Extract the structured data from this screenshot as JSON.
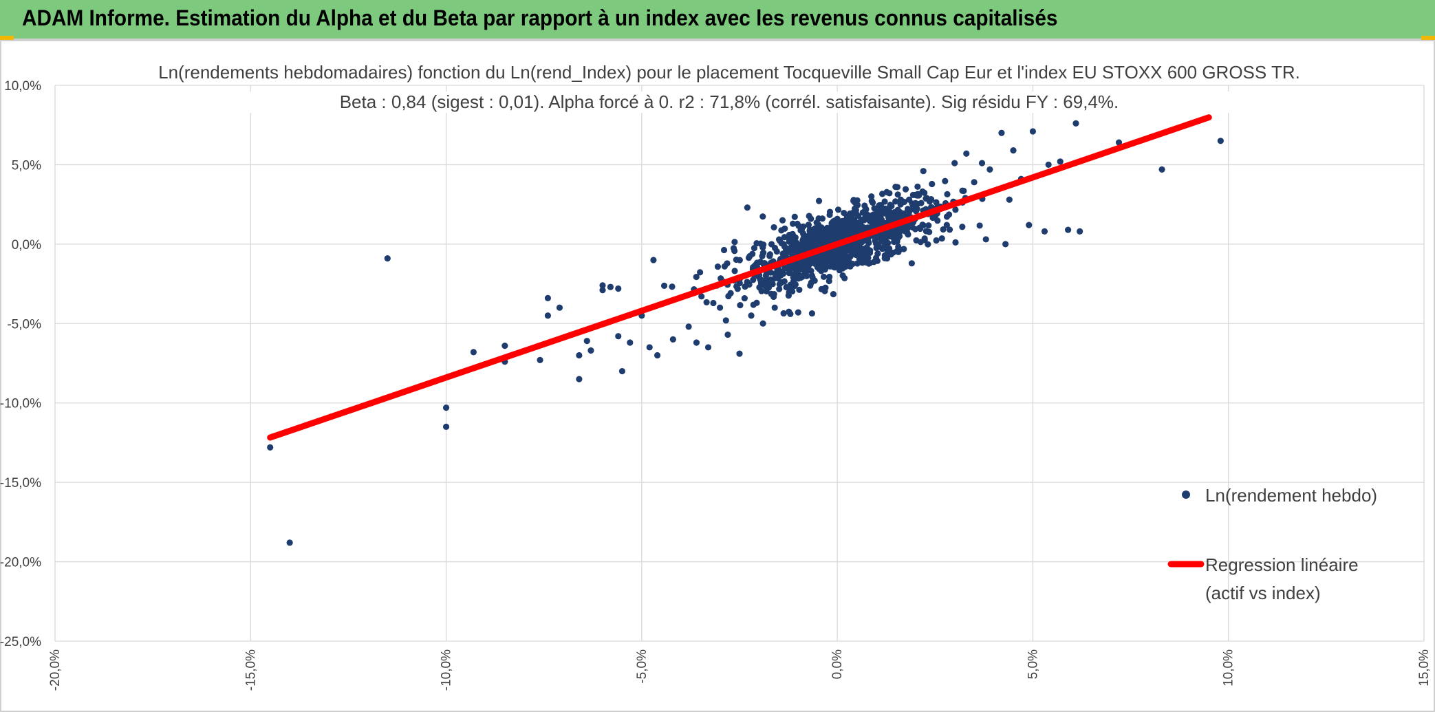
{
  "banner": {
    "title": "ADAM Informe. Estimation du Alpha et du Beta par rapport à un index avec les revenus connus capitalisés"
  },
  "colors": {
    "banner": "#7dc97d",
    "points": "#1f3c6e",
    "regression": "#ff0000",
    "grid": "#d9d9d9",
    "text": "#404040"
  },
  "chart_data": {
    "type": "scatter",
    "title": "Ln(rendements hebdomadaires) fonction du Ln(rend_Index) pour le placement Tocqueville Small Cap Eur et l'index EU STOXX 600 GROSS TR.",
    "subtitle": "Beta : 0,84 (sigest : 0,01). Alpha forcé à 0. r2 : 71,8% (corrél. satisfaisante). Sig résidu FY : 69,4%.",
    "xlim": [
      -0.2,
      0.15
    ],
    "ylim": [
      -0.25,
      0.1
    ],
    "x_ticks": [
      -0.2,
      -0.15,
      -0.1,
      -0.05,
      0.0,
      0.05,
      0.1,
      0.15
    ],
    "y_ticks": [
      0.1,
      0.05,
      0.0,
      -0.05,
      -0.1,
      -0.15,
      -0.2,
      -0.25
    ],
    "x_tick_labels": [
      "-20,0%",
      "-15,0%",
      "-10,0%",
      "-5,0%",
      "0,0%",
      "5,0%",
      "10,0%",
      "15,0%"
    ],
    "y_tick_labels": [
      "10,0%",
      "5,0%",
      "0,0%",
      "-5,0%",
      "-10,0%",
      "-15,0%",
      "-20,0%",
      "-25,0%"
    ],
    "grid": true,
    "legend_position": "bottom-right",
    "series": [
      {
        "name": "Ln(rendement hebdo)",
        "kind": "scatter",
        "color": "#1f3c6e",
        "outliers": [
          {
            "x": -0.145,
            "y": -0.128
          },
          {
            "x": -0.14,
            "y": -0.188
          },
          {
            "x": -0.115,
            "y": -0.009
          },
          {
            "x": -0.1,
            "y": -0.103
          },
          {
            "x": -0.1,
            "y": -0.115
          },
          {
            "x": -0.093,
            "y": -0.068
          },
          {
            "x": -0.085,
            "y": -0.064
          },
          {
            "x": -0.085,
            "y": -0.074
          },
          {
            "x": -0.076,
            "y": -0.073
          },
          {
            "x": -0.074,
            "y": -0.034
          },
          {
            "x": -0.074,
            "y": -0.045
          },
          {
            "x": -0.071,
            "y": -0.04
          },
          {
            "x": -0.066,
            "y": -0.085
          },
          {
            "x": -0.066,
            "y": -0.07
          },
          {
            "x": -0.064,
            "y": -0.061
          },
          {
            "x": -0.063,
            "y": -0.067
          },
          {
            "x": -0.06,
            "y": -0.026
          },
          {
            "x": -0.06,
            "y": -0.029
          },
          {
            "x": -0.058,
            "y": -0.027
          },
          {
            "x": -0.056,
            "y": -0.028
          },
          {
            "x": -0.056,
            "y": -0.058
          },
          {
            "x": -0.055,
            "y": -0.08
          },
          {
            "x": -0.053,
            "y": -0.062
          },
          {
            "x": -0.05,
            "y": -0.045
          },
          {
            "x": -0.048,
            "y": -0.065
          },
          {
            "x": -0.047,
            "y": -0.01
          },
          {
            "x": -0.046,
            "y": -0.07
          },
          {
            "x": -0.042,
            "y": -0.06
          },
          {
            "x": -0.038,
            "y": -0.052
          },
          {
            "x": -0.036,
            "y": -0.062
          },
          {
            "x": -0.033,
            "y": -0.065
          },
          {
            "x": -0.03,
            "y": -0.04
          },
          {
            "x": -0.028,
            "y": -0.057
          },
          {
            "x": -0.025,
            "y": -0.069
          },
          {
            "x": -0.023,
            "y": 0.023
          },
          {
            "x": -0.022,
            "y": -0.045
          },
          {
            "x": -0.019,
            "y": -0.05
          },
          {
            "x": -0.016,
            "y": -0.04
          },
          {
            "x": -0.014,
            "y": 0.015
          },
          {
            "x": -0.012,
            "y": -0.044
          },
          {
            "x": -0.01,
            "y": -0.043
          },
          {
            "x": 0.045,
            "y": 0.059
          },
          {
            "x": 0.05,
            "y": 0.071
          },
          {
            "x": 0.042,
            "y": 0.07
          },
          {
            "x": 0.061,
            "y": 0.076
          },
          {
            "x": 0.072,
            "y": 0.064
          },
          {
            "x": 0.083,
            "y": 0.047
          },
          {
            "x": 0.098,
            "y": 0.065
          },
          {
            "x": 0.053,
            "y": 0.008
          },
          {
            "x": 0.059,
            "y": 0.009
          },
          {
            "x": 0.062,
            "y": 0.008
          },
          {
            "x": 0.049,
            "y": 0.012
          },
          {
            "x": 0.043,
            "y": 0.0
          },
          {
            "x": 0.038,
            "y": 0.003
          },
          {
            "x": 0.033,
            "y": 0.057
          },
          {
            "x": 0.057,
            "y": 0.052
          },
          {
            "x": 0.054,
            "y": 0.05
          },
          {
            "x": 0.047,
            "y": 0.041
          },
          {
            "x": 0.039,
            "y": 0.047
          },
          {
            "x": 0.037,
            "y": 0.051
          },
          {
            "x": 0.03,
            "y": 0.051
          },
          {
            "x": 0.022,
            "y": 0.046
          },
          {
            "x": 0.028,
            "y": 0.012
          },
          {
            "x": 0.044,
            "y": 0.028
          },
          {
            "x": 0.035,
            "y": 0.039
          }
        ],
        "cluster": {
          "count": 1100,
          "x_mean": 0.001,
          "x_sd": 0.013,
          "slope": 0.84,
          "residual_sd": 0.0095
        }
      },
      {
        "name": "Regression linéaire\n(actif vs index)",
        "kind": "line",
        "color": "#ff0000",
        "slope": 0.84,
        "intercept": 0.0,
        "x_range": [
          -0.145,
          0.095
        ]
      }
    ]
  },
  "legend": {
    "items": [
      {
        "label": "Ln(rendement hebdo)"
      },
      {
        "label": "Regression linéaire",
        "label2": "(actif vs index)"
      }
    ]
  }
}
